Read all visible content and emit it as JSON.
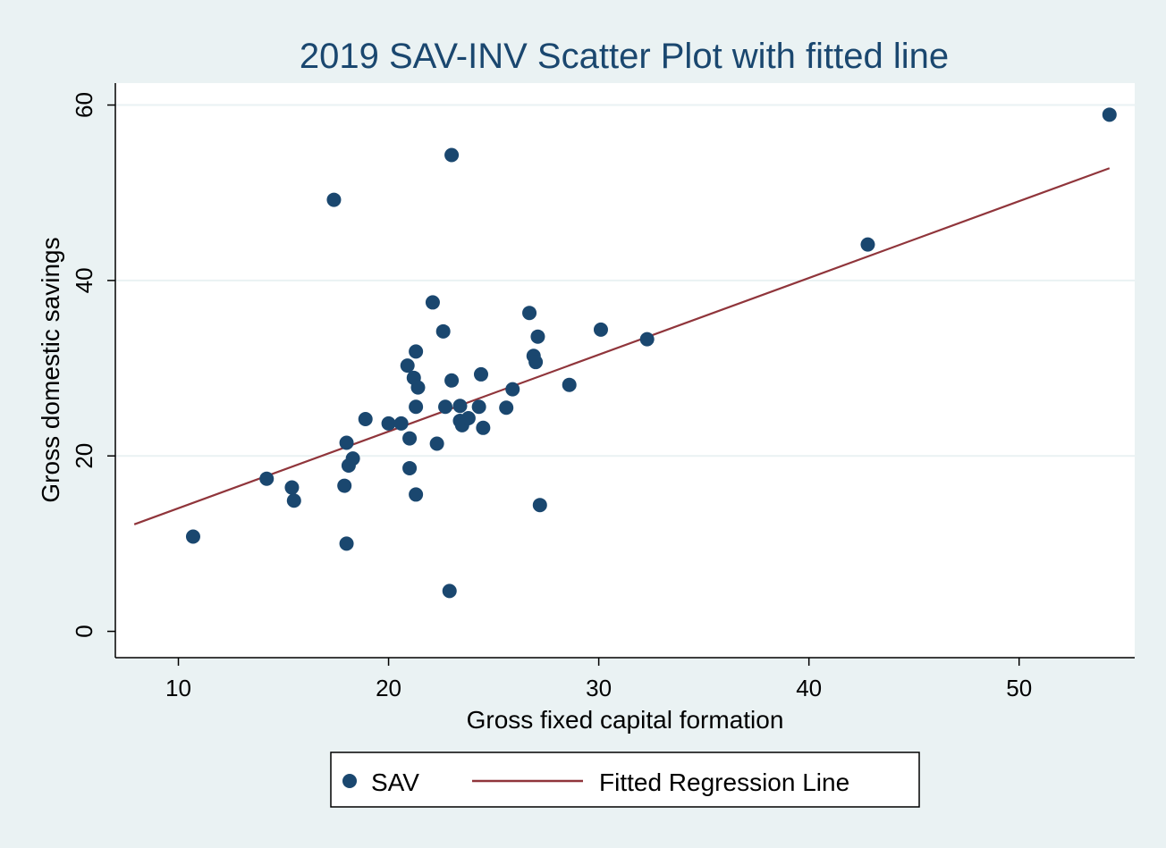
{
  "chart_data": {
    "type": "scatter",
    "title": "2019 SAV-INV Scatter Plot with fitted line",
    "xlabel": "Gross fixed capital formation",
    "ylabel": "Gross domestic savings",
    "xlim": [
      7,
      55.5
    ],
    "ylim": [
      -3,
      62.5
    ],
    "xticks": [
      10,
      20,
      30,
      40,
      50
    ],
    "yticks": [
      0,
      20,
      40,
      60
    ],
    "grid": "horizontal",
    "legend_position": "bottom",
    "colors": {
      "points": "#1a476f",
      "line": "#90353b"
    },
    "series": [
      {
        "name": "SAV",
        "kind": "scatter",
        "points": [
          [
            10.7,
            10.8
          ],
          [
            14.2,
            17.4
          ],
          [
            15.4,
            16.4
          ],
          [
            15.5,
            14.9
          ],
          [
            17.4,
            49.2
          ],
          [
            17.9,
            16.6
          ],
          [
            18.0,
            21.5
          ],
          [
            18.0,
            10.0
          ],
          [
            18.1,
            18.9
          ],
          [
            18.3,
            19.7
          ],
          [
            18.9,
            24.2
          ],
          [
            20.0,
            23.7
          ],
          [
            20.6,
            23.7
          ],
          [
            20.9,
            30.3
          ],
          [
            21.0,
            22.0
          ],
          [
            21.0,
            18.6
          ],
          [
            21.2,
            28.9
          ],
          [
            21.3,
            31.9
          ],
          [
            21.3,
            25.6
          ],
          [
            21.3,
            15.6
          ],
          [
            21.4,
            27.8
          ],
          [
            22.1,
            37.5
          ],
          [
            22.3,
            21.4
          ],
          [
            22.6,
            34.2
          ],
          [
            22.7,
            25.6
          ],
          [
            22.9,
            4.6
          ],
          [
            23.0,
            28.6
          ],
          [
            23.0,
            54.3
          ],
          [
            23.4,
            25.7
          ],
          [
            23.4,
            24.0
          ],
          [
            23.5,
            23.5
          ],
          [
            23.8,
            24.3
          ],
          [
            24.3,
            25.6
          ],
          [
            24.4,
            29.3
          ],
          [
            24.5,
            23.2
          ],
          [
            25.6,
            25.5
          ],
          [
            25.9,
            27.6
          ],
          [
            26.7,
            36.3
          ],
          [
            26.9,
            31.4
          ],
          [
            27.0,
            30.7
          ],
          [
            27.1,
            33.6
          ],
          [
            27.2,
            14.4
          ],
          [
            28.6,
            28.1
          ],
          [
            30.1,
            34.4
          ],
          [
            32.3,
            33.3
          ],
          [
            42.8,
            44.1
          ],
          [
            54.3,
            58.9
          ]
        ]
      },
      {
        "name": "Fitted Regression Line",
        "kind": "line",
        "points": [
          [
            7.9,
            12.2
          ],
          [
            54.3,
            52.8
          ]
        ]
      }
    ]
  }
}
